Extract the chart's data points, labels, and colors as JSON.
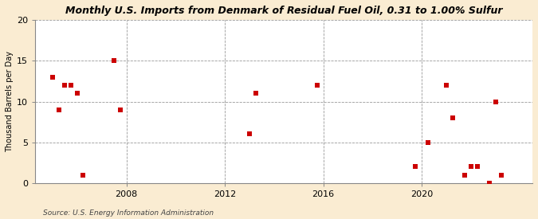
{
  "title": "Monthly U.S. Imports from Denmark of Residual Fuel Oil, 0.31 to 1.00% Sulfur",
  "ylabel": "Thousand Barrels per Day",
  "source": "Source: U.S. Energy Information Administration",
  "background_color": "#faecd2",
  "plot_bg_color": "#ffffff",
  "scatter_color": "#cc0000",
  "marker": "s",
  "marker_size": 16,
  "ylim": [
    0,
    20
  ],
  "yticks": [
    0,
    5,
    10,
    15,
    20
  ],
  "xlim_start": 2004.3,
  "xlim_end": 2024.5,
  "xticks": [
    2008,
    2012,
    2016,
    2020
  ],
  "grid_color": "#999999",
  "data_points": [
    [
      2005.0,
      13.0
    ],
    [
      2005.25,
      9.0
    ],
    [
      2005.5,
      12.0
    ],
    [
      2005.75,
      12.0
    ],
    [
      2006.0,
      11.0
    ],
    [
      2006.25,
      1.0
    ],
    [
      2007.5,
      15.0
    ],
    [
      2007.75,
      9.0
    ],
    [
      2013.0,
      6.0
    ],
    [
      2013.25,
      11.0
    ],
    [
      2015.75,
      12.0
    ],
    [
      2019.75,
      2.0
    ],
    [
      2020.25,
      5.0
    ],
    [
      2021.0,
      12.0
    ],
    [
      2021.25,
      8.0
    ],
    [
      2021.75,
      1.0
    ],
    [
      2022.0,
      2.0
    ],
    [
      2022.25,
      2.0
    ],
    [
      2022.75,
      0.0
    ],
    [
      2023.0,
      10.0
    ],
    [
      2023.25,
      1.0
    ]
  ]
}
